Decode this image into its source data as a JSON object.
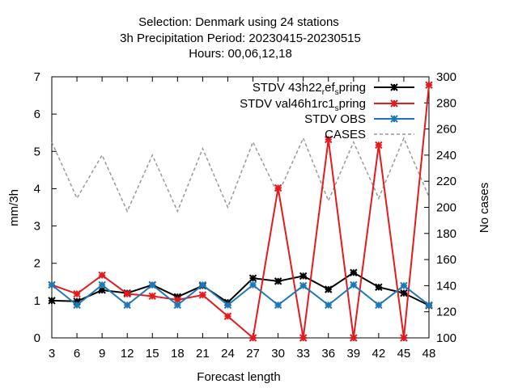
{
  "chart_data": {
    "type": "line",
    "title": [
      "Selection: Denmark using    24 stations",
      "3h Precipitation   Period: 20230415-20230515",
      "Hours:  00,06,12,18"
    ],
    "xlabel": "Forecast length",
    "ylabel": "mm/3h",
    "y2label": "No cases",
    "x": [
      3,
      6,
      9,
      12,
      15,
      18,
      21,
      24,
      27,
      30,
      33,
      36,
      39,
      42,
      45,
      48
    ],
    "xlim": [
      3,
      48
    ],
    "ylim": [
      0,
      7
    ],
    "y2lim": [
      100,
      300
    ],
    "xticks": [
      "3",
      "6",
      "9",
      "12",
      "15",
      "18",
      "21",
      "24",
      "27",
      "30",
      "33",
      "36",
      "39",
      "42",
      "45",
      "48"
    ],
    "yticks": [
      "0",
      "1",
      "2",
      "3",
      "4",
      "5",
      "6",
      "7"
    ],
    "y2ticks": [
      "100",
      "120",
      "140",
      "160",
      "180",
      "200",
      "220",
      "240",
      "260",
      "280",
      "300"
    ],
    "legend_position": "top-right",
    "grid": false,
    "series": [
      {
        "name": "STDV 43h22_ref_spring",
        "legend_parts": [
          "STDV 43h22",
          "r",
          "ef",
          "s",
          "pring"
        ],
        "color": "#000000",
        "marker": "star",
        "axis": "y",
        "values": [
          1.0,
          0.98,
          1.28,
          1.2,
          1.42,
          1.1,
          1.4,
          0.95,
          1.6,
          1.52,
          1.66,
          1.3,
          1.75,
          1.36,
          1.2,
          0.87
        ]
      },
      {
        "name": "STDV val46h1rc1_spring",
        "legend_parts": [
          "STDV val46h1rc1",
          "s",
          "pring"
        ],
        "color": "#e41a1c",
        "marker": "star",
        "axis": "y",
        "values": [
          1.42,
          1.18,
          1.68,
          1.18,
          1.12,
          1.02,
          1.15,
          0.58,
          0.0,
          4.02,
          0.0,
          5.32,
          0.0,
          5.17,
          0.0,
          6.78
        ]
      },
      {
        "name": "STDV OBS",
        "color": "#1f78b4",
        "marker": "star",
        "axis": "y",
        "values": [
          1.42,
          0.88,
          1.42,
          0.88,
          1.42,
          0.88,
          1.42,
          0.88,
          1.42,
          0.88,
          1.4,
          0.88,
          1.42,
          0.88,
          1.4,
          0.88
        ]
      },
      {
        "name": "CASES",
        "color": "#999999",
        "dashed": true,
        "axis": "y2",
        "values": [
          250,
          207,
          240,
          197,
          240,
          197,
          245,
          200,
          250,
          210,
          253,
          205,
          250,
          207,
          253,
          208
        ]
      }
    ]
  }
}
